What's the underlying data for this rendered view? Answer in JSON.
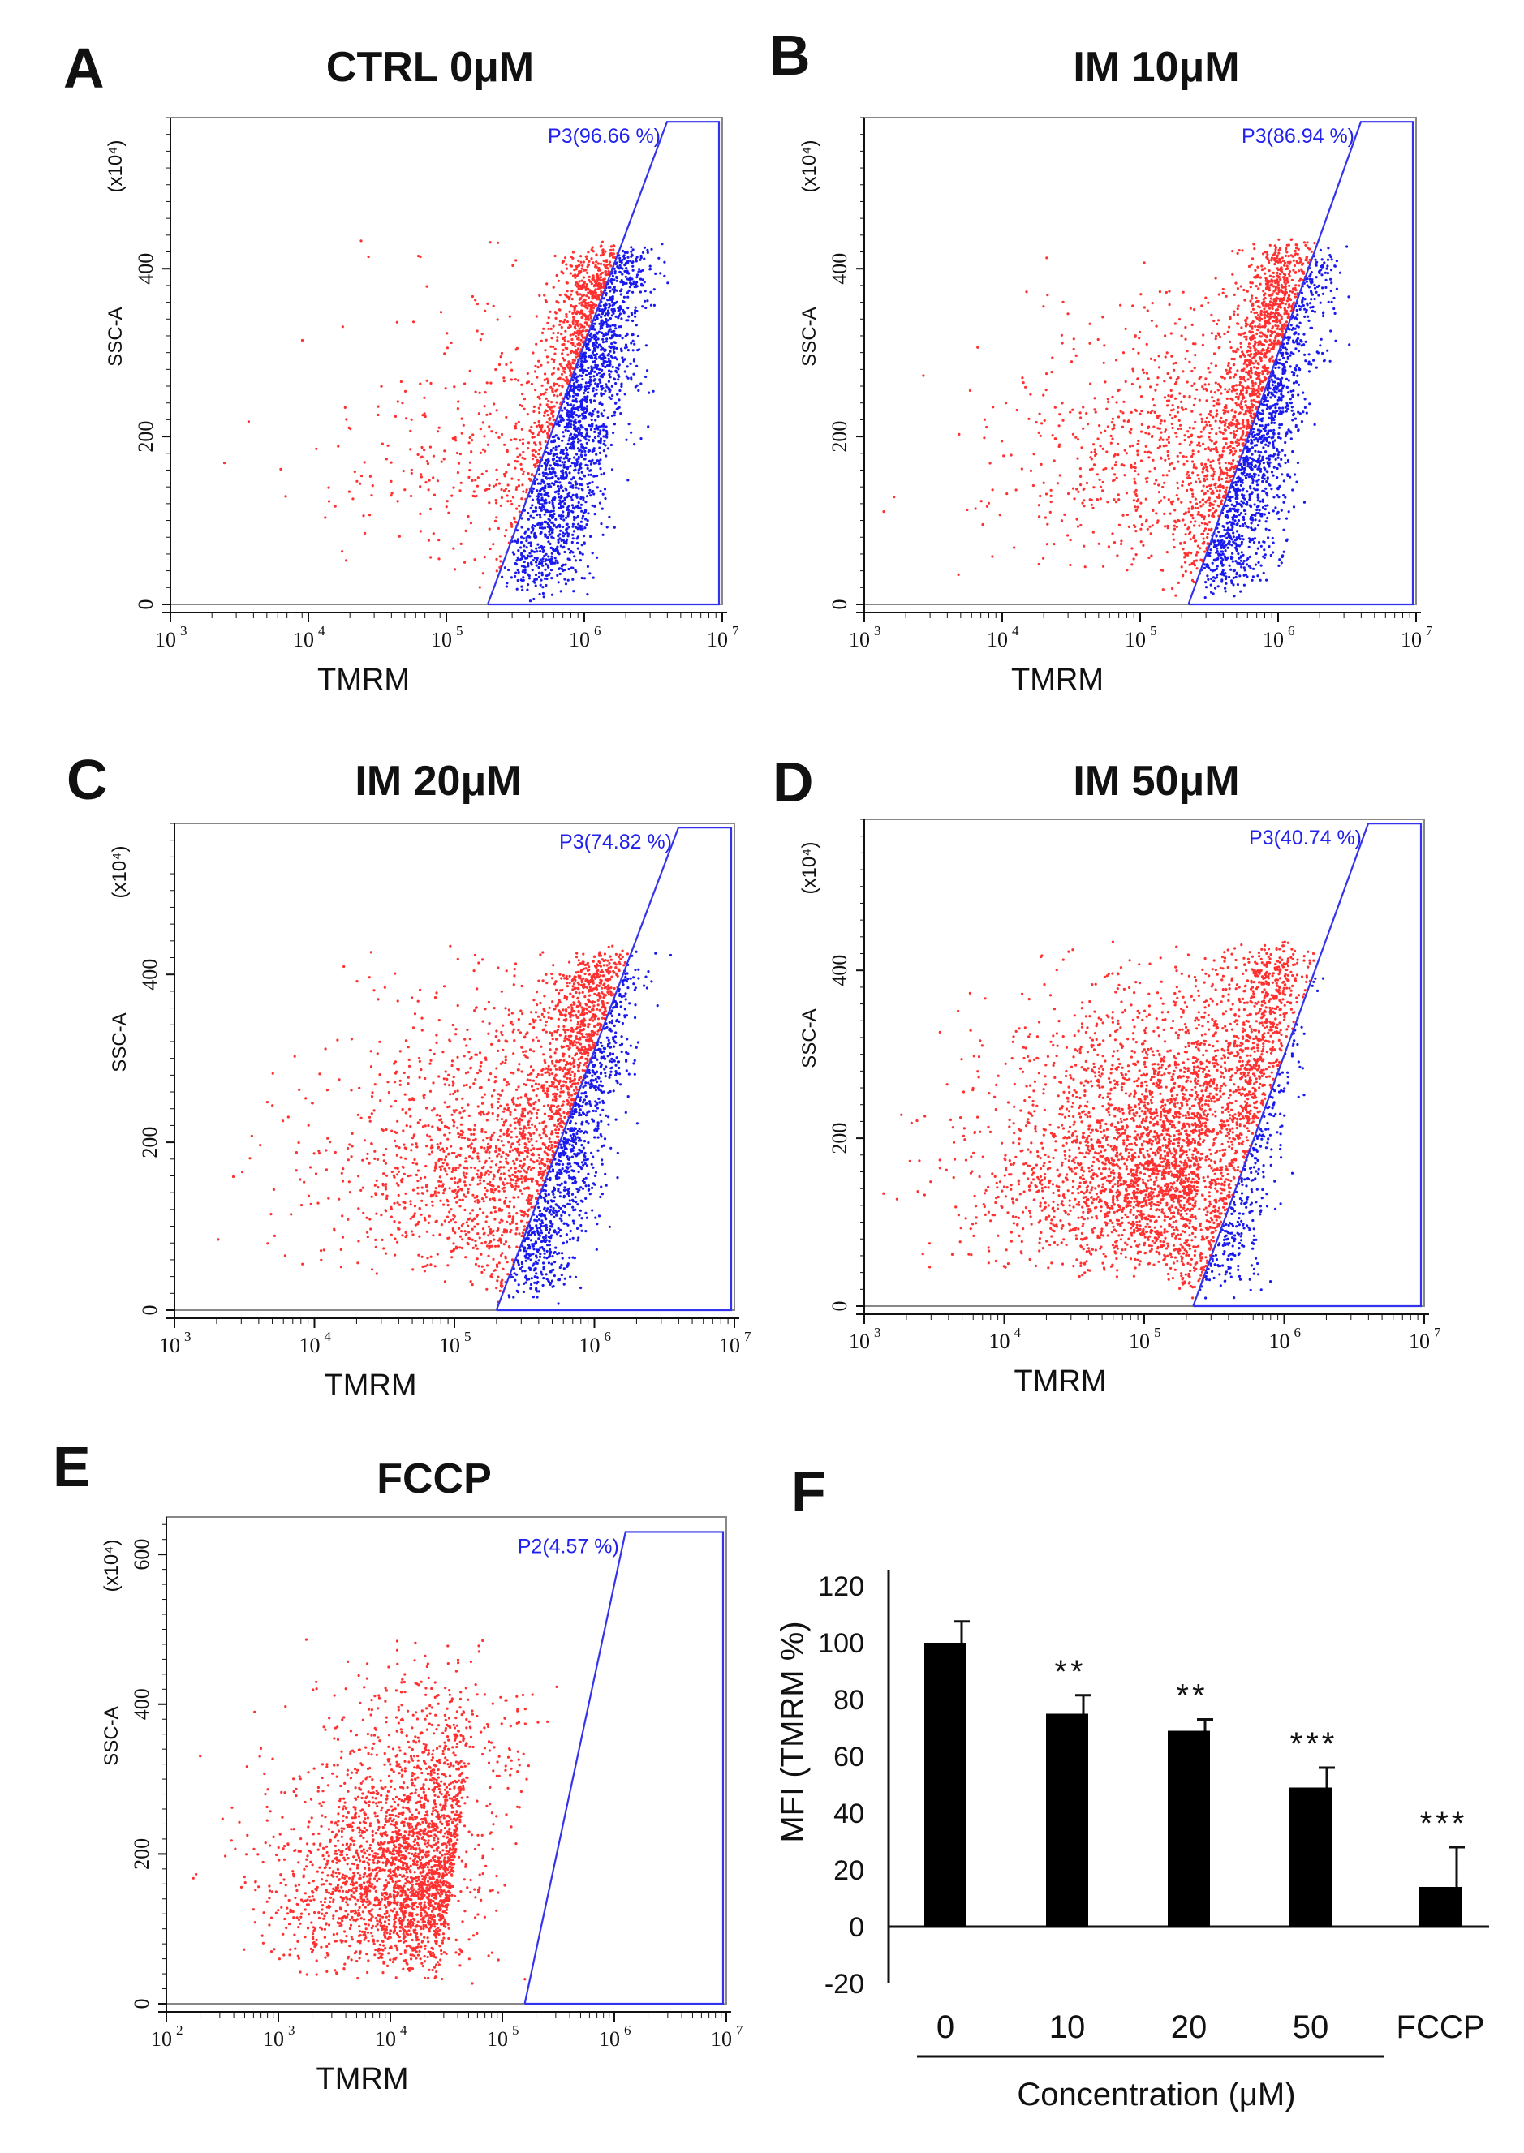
{
  "chart_data": [
    {
      "panel": "A",
      "title": "CTRL 0μM",
      "type": "scatter",
      "xlabel": "TMRM",
      "ylabel": "SSC-A",
      "yunit": "(x10⁴)",
      "x_scale": "log",
      "x_ticks": [
        3,
        4,
        5,
        6,
        7
      ],
      "y_ticks": [
        0,
        200,
        400
      ],
      "ylim": [
        0,
        580
      ],
      "gate": {
        "name": "P3",
        "percent": "96.66 %",
        "x_bottom": 5.3,
        "x_top": 6.6,
        "y_top": 575
      },
      "cloud": {
        "pos_center": [
          6.1,
          180
        ],
        "neg_count": 300,
        "pos_count": 2400,
        "neg_fraction_note": ""
      },
      "points_outside_color": "#ff3030",
      "points_inside_color": "#1a1aee"
    },
    {
      "panel": "B",
      "title": "IM 10μM",
      "type": "scatter",
      "xlabel": "TMRM",
      "ylabel": "SSC-A",
      "yunit": "(x10⁴)",
      "x_scale": "log",
      "x_ticks": [
        3,
        4,
        5,
        6,
        7
      ],
      "y_ticks": [
        0,
        200,
        400
      ],
      "ylim": [
        0,
        580
      ],
      "gate": {
        "name": "P3",
        "percent": "86.94 %",
        "x_bottom": 5.35,
        "x_top": 6.6,
        "y_top": 575
      },
      "cloud": {
        "pos_center": [
          6.0,
          180
        ],
        "neg_count": 700,
        "pos_count": 2300
      },
      "points_outside_color": "#ff3030",
      "points_inside_color": "#1a1aee"
    },
    {
      "panel": "C",
      "title": "IM 20μM",
      "type": "scatter",
      "xlabel": "TMRM",
      "ylabel": "SSC-A",
      "yunit": "(x10⁴)",
      "x_scale": "log",
      "x_ticks": [
        3,
        4,
        5,
        6,
        7
      ],
      "y_ticks": [
        0,
        200,
        400
      ],
      "ylim": [
        0,
        580
      ],
      "gate": {
        "name": "P3",
        "percent": "74.82 %",
        "x_bottom": 5.3,
        "x_top": 6.6,
        "y_top": 575
      },
      "cloud": {
        "pos_center": [
          5.95,
          190
        ],
        "neg_count": 1100,
        "pos_count": 2000
      },
      "points_outside_color": "#ff3030",
      "points_inside_color": "#1a1aee"
    },
    {
      "panel": "D",
      "title": "IM 50μM",
      "type": "scatter",
      "xlabel": "TMRM",
      "ylabel": "SSC-A",
      "yunit": "(x10⁴)",
      "x_scale": "log",
      "x_ticks": [
        3,
        4,
        5,
        6,
        7
      ],
      "y_ticks": [
        0,
        200,
        400
      ],
      "ylim": [
        0,
        580
      ],
      "gate": {
        "name": "P3",
        "percent": "40.74 %",
        "x_bottom": 5.35,
        "x_top": 6.6,
        "y_top": 575
      },
      "cloud": {
        "pos_center": [
          5.85,
          190
        ],
        "neg_count": 2600,
        "pos_count": 1500
      },
      "points_outside_color": "#ff3030",
      "points_inside_color": "#1a1aee"
    },
    {
      "panel": "E",
      "title": "FCCP",
      "type": "scatter",
      "xlabel": "TMRM",
      "ylabel": "SSC-A",
      "yunit": "(x10⁴)",
      "x_scale": "log",
      "x_ticks": [
        2,
        3,
        4,
        5,
        6,
        7
      ],
      "y_ticks": [
        0,
        200,
        400,
        600
      ],
      "ylim": [
        0,
        650
      ],
      "gate": {
        "name": "P2",
        "percent": "4.57 %",
        "x_bottom": 5.2,
        "x_top": 6.1,
        "y_top": 630
      },
      "cloud": {
        "pos_center": [
          5.0,
          130
        ],
        "neg_count": 2600,
        "pos_count": 160
      },
      "points_outside_color": "#ff3030",
      "points_inside_color": "#1a1aee"
    },
    {
      "panel": "F",
      "type": "bar",
      "categories": [
        "0",
        "10",
        "20",
        "50",
        "FCCP"
      ],
      "values": [
        100,
        75,
        69,
        49,
        14
      ],
      "errors": [
        7.5,
        6.5,
        4,
        7,
        14
      ],
      "significance": [
        "",
        "**",
        "**",
        "***",
        "***"
      ],
      "xlabel": "Concentration (μM)",
      "ylabel": "MFI (TMRM %)",
      "ylim": [
        -20,
        120
      ],
      "y_ticks": [
        -20,
        0,
        20,
        40,
        60,
        80,
        100,
        120
      ],
      "bar_color": "#000000"
    }
  ]
}
